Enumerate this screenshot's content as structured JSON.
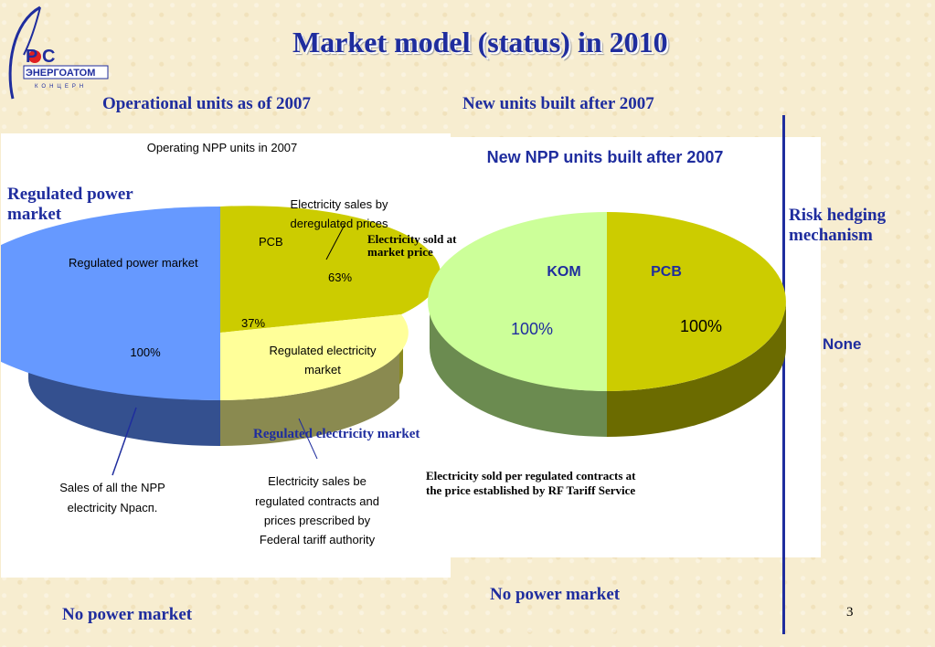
{
  "logo": {
    "brand": "РОС ЭНЕРГОАТОМ",
    "sub": "КОНЦЕРН"
  },
  "title": "Market model (status) in 2010",
  "left_heading": "Operational units as of 2007",
  "right_heading": "New units built after 2007",
  "side_left": "Regulated power\nmarket",
  "side_right": "Risk hedging\nmechanism",
  "none_label": "None",
  "no_power_right": "No power market",
  "no_power_left": "No power market",
  "page_number": "3",
  "pie1": {
    "title": "Operating NPP units in 2007",
    "left_label": "Regulated power market",
    "left_pct": "100%",
    "pcb_caption": "Electricity sales by\nderegulated prices",
    "pcb_tag": "PCB",
    "pcb_pct": "63%",
    "reg_pct": "37%",
    "reg_label": "Regulated electricity\nmarket",
    "annot_sold": "Electricity sold at\nmarket price",
    "annot_reg": "Regulated electricity market",
    "bottom_left": "Sales of all the NPP\nelectricity Npacп.",
    "bottom_mid": "Electricity sales be\nregulated contracts and\nprices prescribed by\nFederal tariff authority"
  },
  "pie2": {
    "title": "New NPP units built after 2007",
    "left_label": "KOM",
    "left_pct": "100%",
    "right_label": "PCB",
    "right_pct": "100%",
    "caption": "Electricity sold per regulated contracts at\nthe price established by RF Tariff Service"
  },
  "chart_data": [
    {
      "type": "pie",
      "title": "Operating NPP units in 2007",
      "slices": [
        {
          "label": "Regulated power market",
          "value": 100
        },
        {
          "label": "PCB",
          "value": 63
        },
        {
          "label": "Regulated electricity market",
          "value": 37
        }
      ],
      "colors": [
        "#6699ff",
        "#cccc00",
        "#ffff99"
      ]
    },
    {
      "type": "pie",
      "title": "New NPP units built after 2007",
      "slices": [
        {
          "label": "KOM",
          "value": 100
        },
        {
          "label": "PCB",
          "value": 100
        }
      ],
      "colors": [
        "#ccff99",
        "#cccc00"
      ]
    }
  ]
}
